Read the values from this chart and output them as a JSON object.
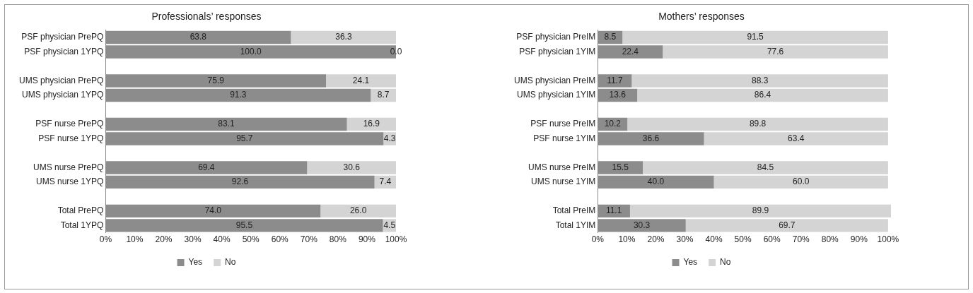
{
  "chart_data": [
    {
      "type": "bar",
      "orientation": "horizontal",
      "stacked": true,
      "title": "Professionals’ responses",
      "categories": [
        "PSF physician PrePQ",
        "PSF physician 1YPQ",
        null,
        "UMS physician PrePQ",
        "UMS physician 1YPQ",
        null,
        "PSF nurse PrePQ",
        "PSF nurse 1YPQ",
        null,
        "UMS nurse PrePQ",
        "UMS nurse 1YPQ",
        null,
        "Total PrePQ",
        "Total 1YPQ"
      ],
      "series": [
        {
          "name": "Yes",
          "color": "#8c8c8c",
          "values": [
            63.8,
            100.0,
            null,
            75.9,
            91.3,
            null,
            83.1,
            95.7,
            null,
            69.4,
            92.6,
            null,
            74.0,
            95.5
          ],
          "value_labels": [
            "63.8",
            "100.0",
            null,
            "75.9",
            "91.3",
            null,
            "83.1",
            "95.7",
            null,
            "69.4",
            "92.6",
            null,
            "74.0",
            "95.5"
          ]
        },
        {
          "name": "No",
          "color": "#d4d4d4",
          "values": [
            36.3,
            0.0,
            null,
            24.1,
            8.7,
            null,
            16.9,
            4.3,
            null,
            30.6,
            7.4,
            null,
            26.0,
            4.5
          ],
          "value_labels": [
            "36.3",
            "0.0",
            null,
            "24.1",
            "8.7",
            null,
            "16.9",
            "4.3",
            null,
            "30.6",
            "7.4",
            null,
            "26.0",
            "4.5"
          ]
        }
      ],
      "xlim": [
        0,
        100
      ],
      "xticks": [
        {
          "value": 0,
          "label": "0%"
        },
        {
          "value": 10,
          "label": "10%"
        },
        {
          "value": 20,
          "label": "20%"
        },
        {
          "value": 30,
          "label": "30%"
        },
        {
          "value": 40,
          "label": "40%"
        },
        {
          "value": 50,
          "label": "50%"
        },
        {
          "value": 60,
          "label": "60%"
        },
        {
          "value": 70,
          "label": "70%"
        },
        {
          "value": 80,
          "label": "80%"
        },
        {
          "value": 90,
          "label": "90%"
        },
        {
          "value": 100,
          "label": "100%"
        }
      ],
      "grid": false,
      "legend": "bottom"
    },
    {
      "type": "bar",
      "orientation": "horizontal",
      "stacked": true,
      "title": "Mothers’ responses",
      "categories": [
        "PSF physician PreIM",
        "PSF physician 1YIM",
        null,
        "UMS physician PreIM",
        "UMS physician 1YIM",
        null,
        "PSF nurse PreIM",
        "PSF nurse 1YIM",
        null,
        "UMS nurse PreIM",
        "UMS nurse 1YIM",
        null,
        "Total PreIM",
        "Total 1YIM"
      ],
      "series": [
        {
          "name": "Yes",
          "color": "#8c8c8c",
          "values": [
            8.5,
            22.4,
            null,
            11.7,
            13.6,
            null,
            10.2,
            36.6,
            null,
            15.5,
            40.0,
            null,
            11.1,
            30.3
          ],
          "value_labels": [
            "8.5",
            "22.4",
            null,
            "11.7",
            "13.6",
            null,
            "10.2",
            "36.6",
            null,
            "15.5",
            "40.0",
            null,
            "11.1",
            "30.3"
          ]
        },
        {
          "name": "No",
          "color": "#d4d4d4",
          "values": [
            91.5,
            77.6,
            null,
            88.3,
            86.4,
            null,
            89.8,
            63.4,
            null,
            84.5,
            60.0,
            null,
            89.9,
            69.7
          ],
          "value_labels": [
            "91.5",
            "77.6",
            null,
            "88.3",
            "86.4",
            null,
            "89.8",
            "63.4",
            null,
            "84.5",
            "60.0",
            null,
            "89.9",
            "69.7"
          ]
        }
      ],
      "xlim": [
        0,
        101
      ],
      "xticks": [
        {
          "value": 0,
          "label": "0%"
        },
        {
          "value": 10,
          "label": "10%"
        },
        {
          "value": 20,
          "label": "20%"
        },
        {
          "value": 30,
          "label": "30%"
        },
        {
          "value": 40,
          "label": "40%"
        },
        {
          "value": 50,
          "label": "50%"
        },
        {
          "value": 60,
          "label": "60%"
        },
        {
          "value": 70,
          "label": "70%"
        },
        {
          "value": 80,
          "label": "80%"
        },
        {
          "value": 90,
          "label": "90%"
        },
        {
          "value": 100,
          "label": "100%"
        }
      ],
      "grid": false,
      "legend": "bottom"
    }
  ]
}
